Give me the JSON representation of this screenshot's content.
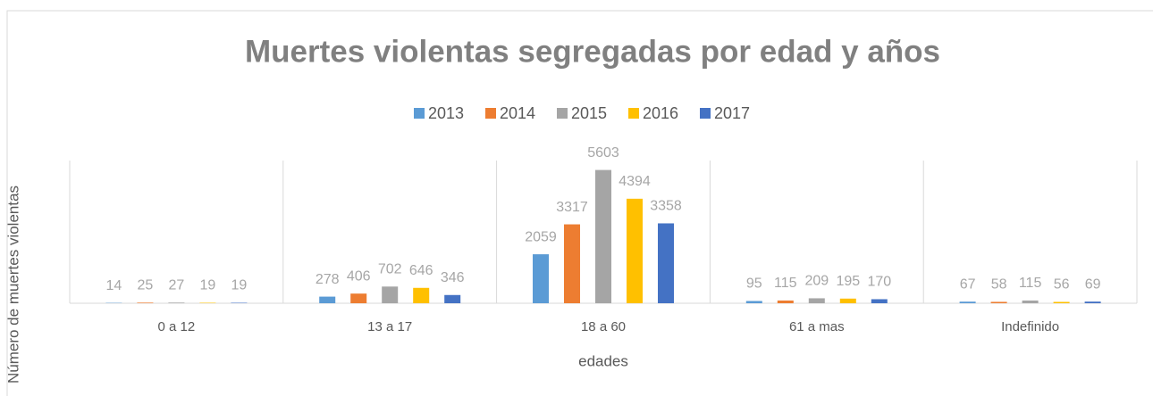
{
  "chart_data": {
    "type": "bar",
    "title": "Muertes violentas segregadas por edad y años",
    "xlabel": "edades",
    "ylabel": "Número de muertes violentas",
    "categories": [
      "0 a 12",
      "13 a 17",
      "18 a 60",
      "61 a mas",
      "Indefinido"
    ],
    "series": [
      {
        "name": "2013",
        "color": "#5b9bd5",
        "values": [
          14,
          278,
          2059,
          95,
          67
        ]
      },
      {
        "name": "2014",
        "color": "#ed7d31",
        "values": [
          25,
          406,
          3317,
          115,
          58
        ]
      },
      {
        "name": "2015",
        "color": "#a5a5a5",
        "values": [
          27,
          702,
          5603,
          209,
          115
        ]
      },
      {
        "name": "2016",
        "color": "#ffc000",
        "values": [
          19,
          646,
          4394,
          195,
          56
        ]
      },
      {
        "name": "2017",
        "color": "#4472c4",
        "values": [
          19,
          346,
          3358,
          170,
          69
        ]
      }
    ],
    "ylim": [
      0,
      6000
    ],
    "legend": "top"
  }
}
